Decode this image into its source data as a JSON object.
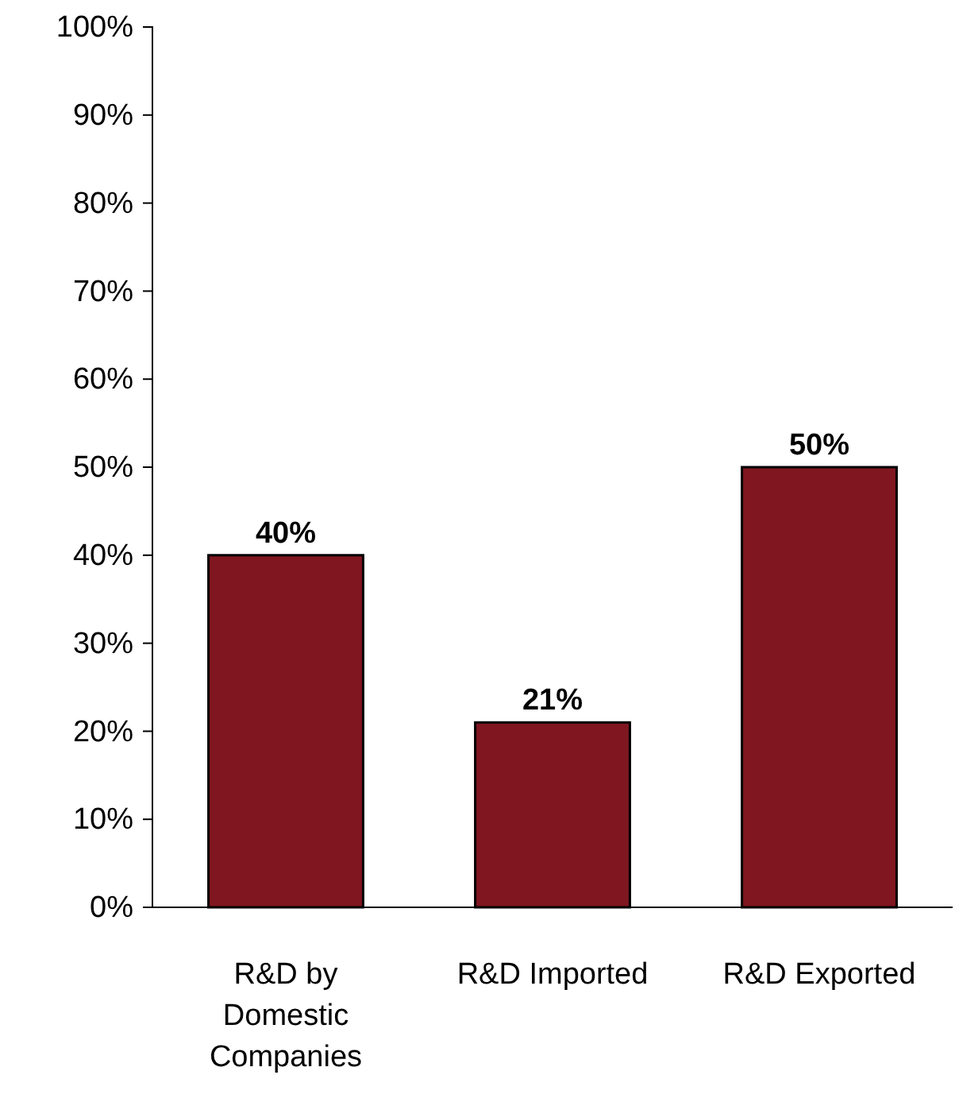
{
  "chart_data": {
    "type": "bar",
    "categories": [
      "R&D by Domestic Companies",
      "R&D Imported",
      "R&D Exported"
    ],
    "values": [
      40,
      21,
      50
    ],
    "color": "#7f1620",
    "value_labels": [
      "40%",
      "21%",
      "50%"
    ],
    "ylim": [
      0,
      100
    ],
    "yticks": [
      {
        "value": 0,
        "label": "0%"
      },
      {
        "value": 10,
        "label": "10%"
      },
      {
        "value": 20,
        "label": "20%"
      },
      {
        "value": 30,
        "label": "30%"
      },
      {
        "value": 40,
        "label": "40%"
      },
      {
        "value": 50,
        "label": "50%"
      },
      {
        "value": 60,
        "label": "60%"
      },
      {
        "value": 70,
        "label": "70%"
      },
      {
        "value": 80,
        "label": "80%"
      },
      {
        "value": 90,
        "label": "90%"
      },
      {
        "value": 100,
        "label": "100%"
      }
    ],
    "grid": false
  }
}
